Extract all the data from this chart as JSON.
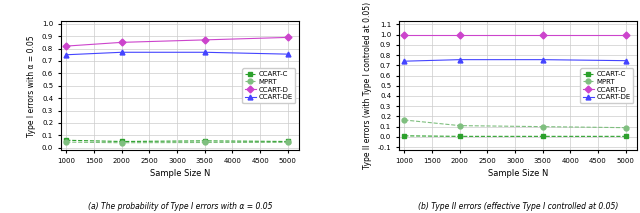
{
  "x": [
    1000,
    2000,
    3500,
    5000
  ],
  "left_plot": {
    "CCART-C": [
      0.06,
      0.05,
      0.055,
      0.05
    ],
    "MPRT": [
      0.045,
      0.04,
      0.042,
      0.043
    ],
    "CCART-D": [
      0.82,
      0.85,
      0.87,
      0.89
    ],
    "CCART-DE": [
      0.75,
      0.77,
      0.77,
      0.755
    ]
  },
  "right_plot": {
    "CCART-C": [
      0.01,
      0.005,
      0.005,
      0.005
    ],
    "MPRT": [
      0.165,
      0.11,
      0.1,
      0.09
    ],
    "CCART-D": [
      1.0,
      1.0,
      1.0,
      1.0
    ],
    "CCART-DE": [
      0.74,
      0.755,
      0.755,
      0.745
    ]
  },
  "colors": {
    "CCART-C": "#2ca02c",
    "MPRT": "#7fbf7f",
    "CCART-D": "#cc44cc",
    "CCART-DE": "#4444ff"
  },
  "markers": {
    "CCART-C": "s",
    "MPRT": "o",
    "CCART-D": "D",
    "CCART-DE": "^"
  },
  "left_ylabel": "Type I errors with α = 0.05",
  "right_ylabel": "Type II errors (with Type I controled at 0.05)",
  "xlabel": "Sample Size N",
  "left_ylim": [
    -0.02,
    1.02
  ],
  "right_ylim": [
    -0.13,
    1.13
  ],
  "left_yticks": [
    0.0,
    0.1,
    0.2,
    0.3,
    0.4,
    0.5,
    0.6,
    0.7,
    0.8,
    0.9,
    1.0
  ],
  "right_yticks": [
    -0.1,
    0.0,
    0.1,
    0.2,
    0.3,
    0.4,
    0.5,
    0.6,
    0.7,
    0.8,
    0.9,
    1.0,
    1.1
  ],
  "xticks": [
    1000,
    1500,
    2000,
    2500,
    3000,
    3500,
    4000,
    4500,
    5000
  ],
  "left_caption": "(a) The probability of Type I errors with α = 0.05",
  "right_caption": "(b) Type II errors (effective Type I controlled at 0.05)"
}
